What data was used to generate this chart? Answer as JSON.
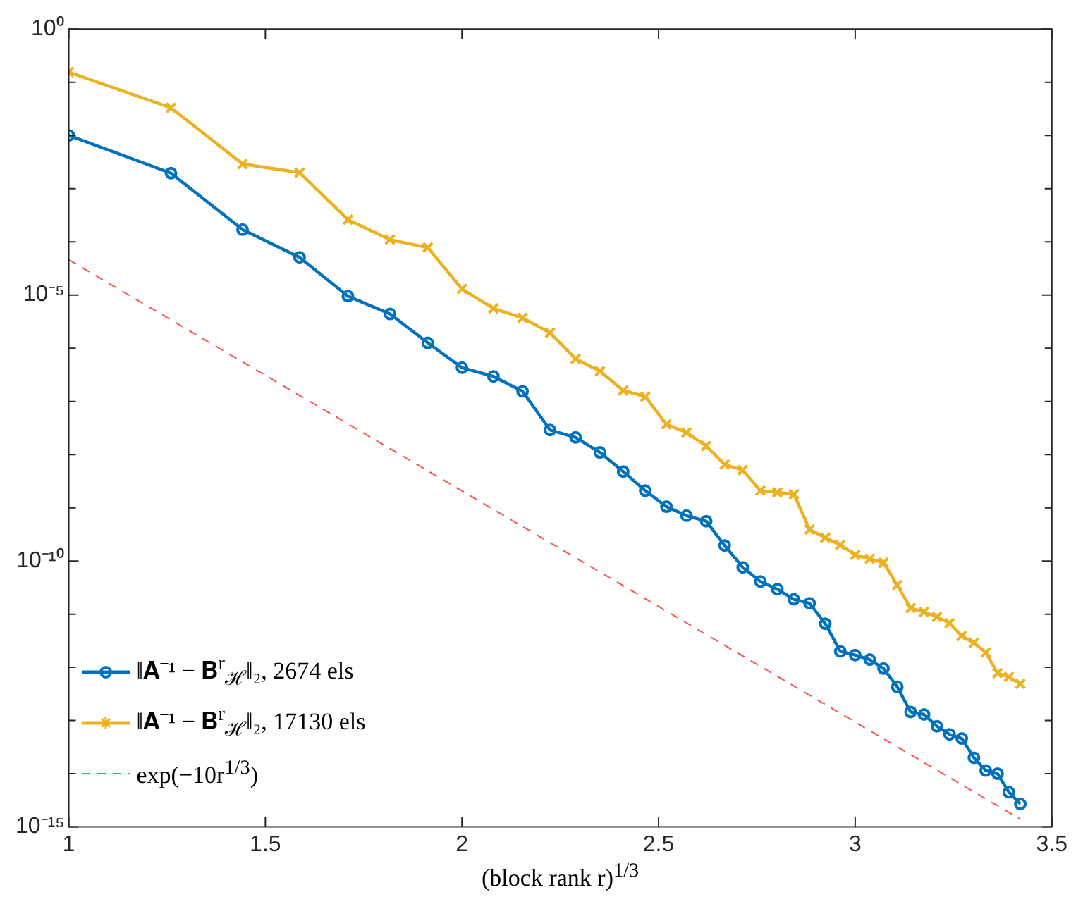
{
  "chart_data": {
    "type": "line",
    "xlabel": "(block rank r)$^{1/3}$",
    "x": [
      1,
      1.26,
      1.442,
      1.587,
      1.71,
      1.817,
      1.913,
      2,
      2.08,
      2.154,
      2.224,
      2.289,
      2.351,
      2.41,
      2.466,
      2.52,
      2.571,
      2.621,
      2.668,
      2.714,
      2.759,
      2.802,
      2.844,
      2.884,
      2.924,
      2.962,
      3,
      3.037,
      3.072,
      3.107,
      3.141,
      3.175,
      3.208,
      3.24,
      3.271,
      3.302,
      3.332,
      3.362,
      3.391,
      3.42
    ],
    "series": [
      {
        "name": "‖𝐀⁻¹ − 𝐁$^{r}$$_{ℋ}$‖₂, 2674 els",
        "color": "#0072bd",
        "marker": "circle",
        "values": [
          0.01,
          0.00195,
          0.00017,
          5.1e-05,
          9.5e-06,
          4.4e-06,
          1.26e-06,
          4.3e-07,
          2.95e-07,
          1.55e-07,
          2.9e-08,
          2.1e-08,
          1.1e-08,
          4.8e-09,
          2.1e-09,
          1.05e-09,
          7.1e-10,
          5.6e-10,
          1.95e-10,
          7.6e-11,
          4.1e-11,
          2.95e-11,
          1.9e-11,
          1.6e-11,
          6.6e-12,
          2e-12,
          1.7e-12,
          1.4e-12,
          9.5e-13,
          4.3e-13,
          1.45e-13,
          1.3e-13,
          7.8e-14,
          5.5e-14,
          4.6e-14,
          2e-14,
          1.15e-14,
          1e-14,
          4.5e-15,
          2.7e-15
        ]
      },
      {
        "name": "‖𝐀⁻¹ − 𝐁$^{r}$$_{ℋ}$‖₂, 17130 els",
        "color": "#edb120",
        "marker": "cross",
        "values": [
          0.155,
          0.033,
          0.0029,
          0.002,
          0.00026,
          0.00011,
          7.8e-05,
          1.3e-05,
          5.6e-06,
          3.7e-06,
          1.95e-06,
          6.3e-07,
          3.7e-07,
          1.6e-07,
          1.23e-07,
          3.7e-08,
          2.6e-08,
          1.45e-08,
          6.5e-09,
          5.1e-09,
          2.1e-09,
          1.95e-09,
          1.8e-09,
          3.9e-10,
          2.75e-10,
          2e-10,
          1.3e-10,
          1.1e-10,
          9.3e-11,
          3.5e-11,
          1.3e-11,
          1.1e-11,
          8.9e-12,
          6.8e-12,
          3.9e-12,
          2.9e-12,
          1.9e-12,
          7.8e-13,
          6.6e-13,
          4.9e-13
        ]
      },
      {
        "name": "exp(−10r$^{1/3}$)",
        "color": "#ff5050",
        "marker": "none",
        "line_style": "dashed",
        "x": [
          1,
          3.42
        ],
        "values": [
          4.6e-05,
          1.4e-15
        ]
      }
    ],
    "xlim": [
      1,
      3.5
    ],
    "xticks": [
      1,
      1.5,
      2,
      2.5,
      3,
      3.5
    ],
    "ylim": [
      1e-15,
      1
    ],
    "yticks": [
      {
        "value": 1,
        "label": "10⁰"
      },
      {
        "value": 0.1,
        "label": null
      },
      {
        "value": 0.01,
        "label": null
      },
      {
        "value": 0.001,
        "label": null
      },
      {
        "value": 0.0001,
        "label": null
      },
      {
        "value": 1e-05,
        "label": "10⁻⁵"
      },
      {
        "value": 1e-06,
        "label": null
      },
      {
        "value": 1e-07,
        "label": null
      },
      {
        "value": 1e-08,
        "label": null
      },
      {
        "value": 1e-09,
        "label": null
      },
      {
        "value": 1e-10,
        "label": "10⁻¹⁰"
      },
      {
        "value": 1e-11,
        "label": null
      },
      {
        "value": 1e-12,
        "label": null
      },
      {
        "value": 1e-13,
        "label": null
      },
      {
        "value": 1e-14,
        "label": null
      },
      {
        "value": 1e-15,
        "label": "10⁻¹⁵"
      }
    ],
    "log": "y",
    "grid": false,
    "legend": "bottom left"
  }
}
